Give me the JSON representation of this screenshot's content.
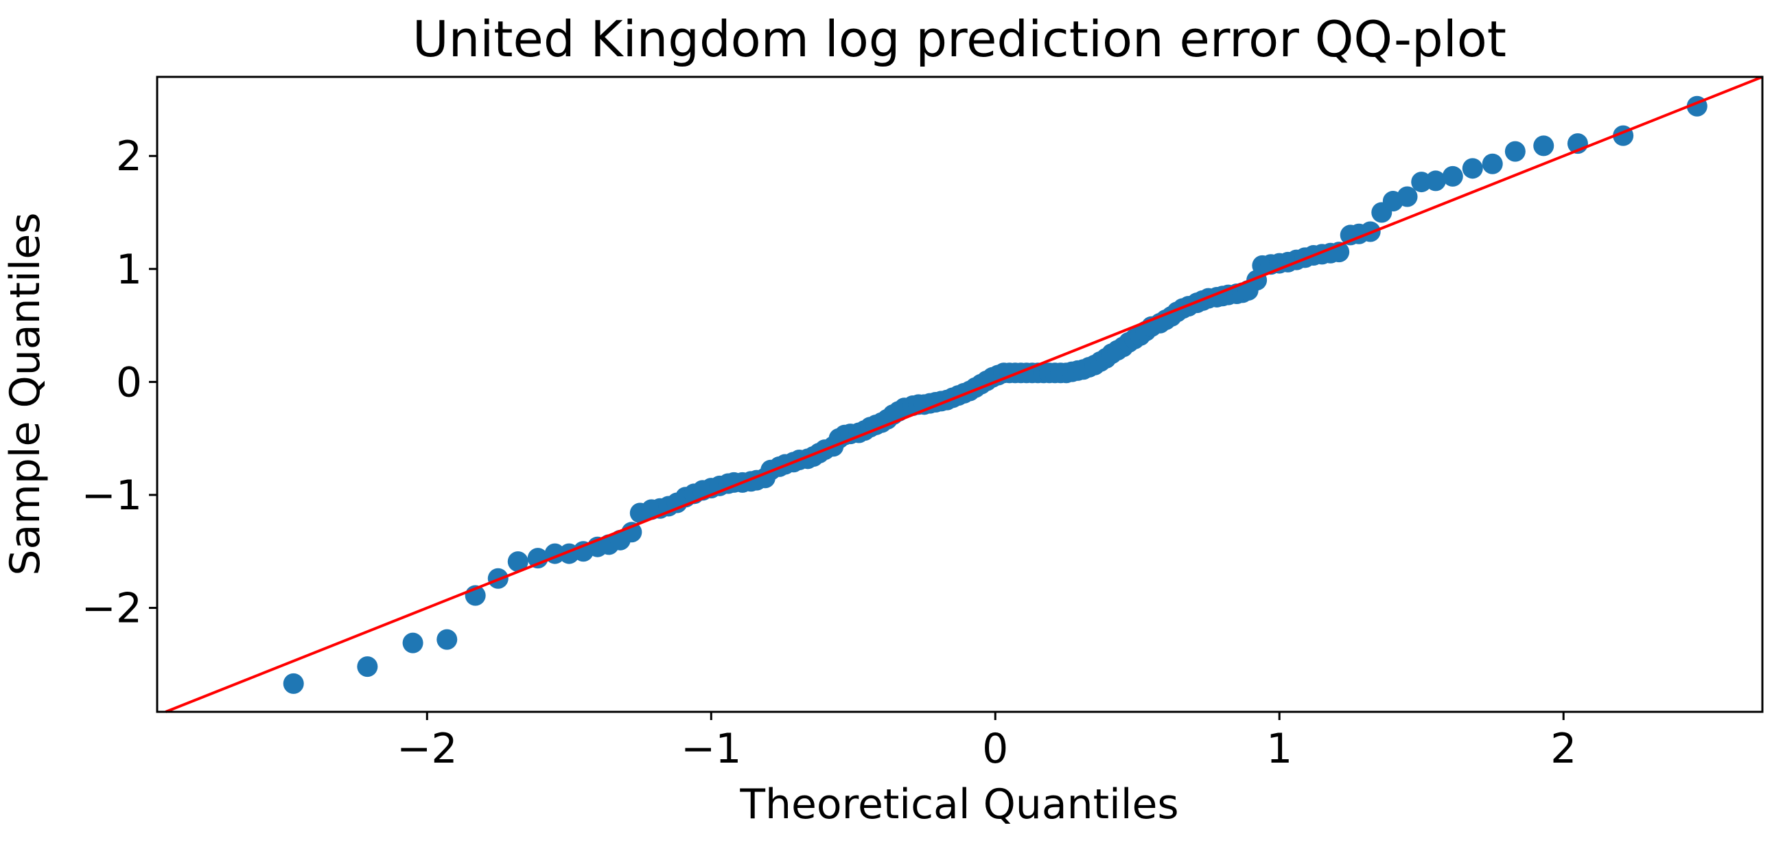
{
  "chart_data": {
    "type": "scatter",
    "title": "United Kingdom log prediction error QQ-plot",
    "xlabel": "Theoretical Quantiles",
    "ylabel": "Sample Quantiles",
    "xlim": [
      -2.95,
      2.7
    ],
    "ylim": [
      -2.92,
      2.7
    ],
    "xticks": [
      {
        "value": -2,
        "label": "−2"
      },
      {
        "value": -1,
        "label": "−1"
      },
      {
        "value": 0,
        "label": "0"
      },
      {
        "value": 1,
        "label": "1"
      },
      {
        "value": 2,
        "label": "2"
      }
    ],
    "yticks": [
      {
        "value": -2,
        "label": "−2"
      },
      {
        "value": -1,
        "label": "−1"
      },
      {
        "value": 0,
        "label": "0"
      },
      {
        "value": 1,
        "label": "1"
      },
      {
        "value": 2,
        "label": "2"
      }
    ],
    "grid": false,
    "colors": {
      "points": "#1f77b4",
      "reference_line": "#ff0000",
      "axes": "#000000"
    },
    "reference_line": {
      "slope": 1.0,
      "intercept": 0.0
    },
    "points": [
      [
        -2.47,
        -2.67
      ],
      [
        -2.21,
        -2.52
      ],
      [
        -2.05,
        -2.31
      ],
      [
        -1.93,
        -2.28
      ],
      [
        -1.83,
        -1.89
      ],
      [
        -1.75,
        -1.74
      ],
      [
        -1.68,
        -1.59
      ],
      [
        -1.61,
        -1.56
      ],
      [
        -1.55,
        -1.52
      ],
      [
        -1.5,
        -1.52
      ],
      [
        -1.45,
        -1.5
      ],
      [
        -1.4,
        -1.46
      ],
      [
        -1.36,
        -1.44
      ],
      [
        -1.32,
        -1.4
      ],
      [
        -1.28,
        -1.33
      ],
      [
        -1.25,
        -1.16
      ],
      [
        -1.21,
        -1.13
      ],
      [
        -1.18,
        -1.12
      ],
      [
        -1.15,
        -1.1
      ],
      [
        -1.12,
        -1.07
      ],
      [
        -1.09,
        -1.02
      ],
      [
        -1.06,
        -0.99
      ],
      [
        -1.03,
        -0.96
      ],
      [
        -1.0,
        -0.94
      ],
      [
        -0.97,
        -0.92
      ],
      [
        -0.94,
        -0.9
      ],
      [
        -0.92,
        -0.89
      ],
      [
        -0.89,
        -0.89
      ],
      [
        -0.86,
        -0.88
      ],
      [
        -0.84,
        -0.87
      ],
      [
        -0.81,
        -0.85
      ],
      [
        -0.79,
        -0.78
      ],
      [
        -0.76,
        -0.75
      ],
      [
        -0.74,
        -0.73
      ],
      [
        -0.71,
        -0.71
      ],
      [
        -0.69,
        -0.69
      ],
      [
        -0.66,
        -0.68
      ],
      [
        -0.64,
        -0.66
      ],
      [
        -0.62,
        -0.63
      ],
      [
        -0.6,
        -0.6
      ],
      [
        -0.57,
        -0.57
      ],
      [
        -0.55,
        -0.5
      ],
      [
        -0.53,
        -0.47
      ],
      [
        -0.51,
        -0.46
      ],
      [
        -0.48,
        -0.45
      ],
      [
        -0.46,
        -0.43
      ],
      [
        -0.44,
        -0.4
      ],
      [
        -0.42,
        -0.38
      ],
      [
        -0.4,
        -0.36
      ],
      [
        -0.38,
        -0.33
      ],
      [
        -0.36,
        -0.29
      ],
      [
        -0.34,
        -0.26
      ],
      [
        -0.32,
        -0.23
      ],
      [
        -0.29,
        -0.21
      ],
      [
        -0.27,
        -0.2
      ],
      [
        -0.25,
        -0.2
      ],
      [
        -0.23,
        -0.19
      ],
      [
        -0.21,
        -0.18
      ],
      [
        -0.19,
        -0.17
      ],
      [
        -0.17,
        -0.16
      ],
      [
        -0.15,
        -0.14
      ],
      [
        -0.13,
        -0.12
      ],
      [
        -0.11,
        -0.1
      ],
      [
        -0.09,
        -0.08
      ],
      [
        -0.07,
        -0.05
      ],
      [
        -0.05,
        -0.02
      ],
      [
        -0.03,
        0.01
      ],
      [
        -0.01,
        0.04
      ],
      [
        0.01,
        0.06
      ],
      [
        0.03,
        0.08
      ],
      [
        0.05,
        0.08
      ],
      [
        0.07,
        0.08
      ],
      [
        0.09,
        0.08
      ],
      [
        0.11,
        0.08
      ],
      [
        0.13,
        0.08
      ],
      [
        0.15,
        0.08
      ],
      [
        0.17,
        0.08
      ],
      [
        0.19,
        0.08
      ],
      [
        0.21,
        0.08
      ],
      [
        0.23,
        0.08
      ],
      [
        0.25,
        0.08
      ],
      [
        0.27,
        0.09
      ],
      [
        0.29,
        0.1
      ],
      [
        0.31,
        0.11
      ],
      [
        0.33,
        0.13
      ],
      [
        0.35,
        0.15
      ],
      [
        0.37,
        0.18
      ],
      [
        0.39,
        0.21
      ],
      [
        0.41,
        0.25
      ],
      [
        0.43,
        0.28
      ],
      [
        0.45,
        0.31
      ],
      [
        0.47,
        0.35
      ],
      [
        0.49,
        0.38
      ],
      [
        0.51,
        0.41
      ],
      [
        0.53,
        0.45
      ],
      [
        0.55,
        0.49
      ],
      [
        0.58,
        0.52
      ],
      [
        0.6,
        0.55
      ],
      [
        0.62,
        0.58
      ],
      [
        0.64,
        0.62
      ],
      [
        0.66,
        0.65
      ],
      [
        0.68,
        0.67
      ],
      [
        0.71,
        0.7
      ],
      [
        0.73,
        0.72
      ],
      [
        0.75,
        0.74
      ],
      [
        0.78,
        0.75
      ],
      [
        0.8,
        0.76
      ],
      [
        0.82,
        0.77
      ],
      [
        0.85,
        0.78
      ],
      [
        0.87,
        0.79
      ],
      [
        0.89,
        0.81
      ],
      [
        0.92,
        0.9
      ],
      [
        0.94,
        1.03
      ],
      [
        0.97,
        1.04
      ],
      [
        1.0,
        1.05
      ],
      [
        1.03,
        1.06
      ],
      [
        1.06,
        1.08
      ],
      [
        1.09,
        1.1
      ],
      [
        1.12,
        1.12
      ],
      [
        1.15,
        1.13
      ],
      [
        1.18,
        1.14
      ],
      [
        1.21,
        1.15
      ],
      [
        1.25,
        1.3
      ],
      [
        1.28,
        1.31
      ],
      [
        1.32,
        1.33
      ],
      [
        1.36,
        1.5
      ],
      [
        1.4,
        1.6
      ],
      [
        1.45,
        1.64
      ],
      [
        1.5,
        1.77
      ],
      [
        1.55,
        1.78
      ],
      [
        1.61,
        1.82
      ],
      [
        1.68,
        1.89
      ],
      [
        1.75,
        1.93
      ],
      [
        1.83,
        2.04
      ],
      [
        1.93,
        2.09
      ],
      [
        2.05,
        2.11
      ],
      [
        2.21,
        2.18
      ],
      [
        2.47,
        2.44
      ]
    ]
  }
}
